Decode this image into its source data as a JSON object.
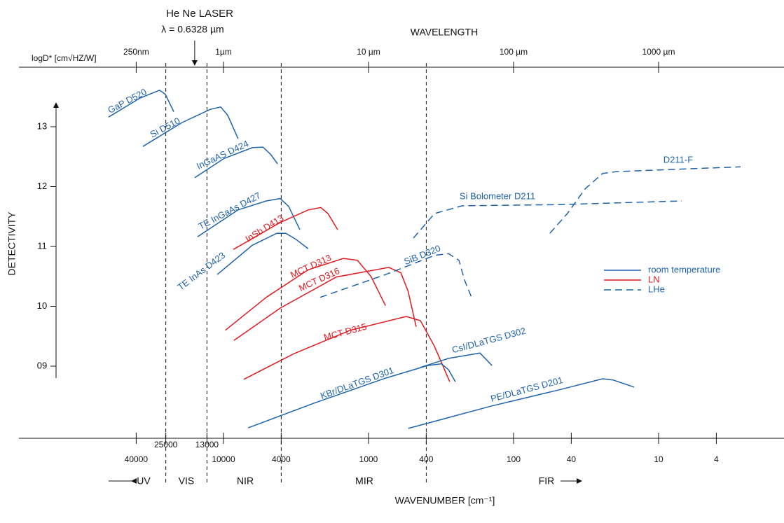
{
  "chart_data": {
    "type": "line",
    "x_scale": "log",
    "top_axis_label": "WAVELENGTH",
    "x2_axis_label": "WAVENUMBER [cm⁻¹]",
    "y_axis_label": "DETECTIVITY",
    "y_unit_label": "logD* [cm√HZ/W]",
    "xlim": [
      0.1,
      5000
    ],
    "xticks": [
      {
        "value": 0.25,
        "label": "250nm"
      },
      {
        "value": 1,
        "label": "1µm"
      },
      {
        "value": 10,
        "label": "10 µm"
      },
      {
        "value": 100,
        "label": "100 µm"
      },
      {
        "value": 1000,
        "label": "1000 µm"
      }
    ],
    "x2lim": [
      100000,
      2
    ],
    "x2ticks": [
      40000,
      25000,
      13000,
      10000,
      4000,
      1000,
      400,
      100,
      40,
      10,
      4
    ],
    "ylim": [
      7.8,
      13.9
    ],
    "yticks": [
      13,
      12,
      11,
      10,
      {
        "value": 9,
        "label": "09"
      }
    ],
    "boundaries": [
      25000,
      13000,
      4000,
      400
    ],
    "regions": [
      "UV",
      "VIS",
      "NIR",
      "MIR",
      "FIR"
    ],
    "laser": {
      "label": "He Ne LASER",
      "wavelength_label": "λ = 0.6328 µm",
      "x": 0.6328
    },
    "legend": [
      {
        "name": "room temperature",
        "color": "#1f63ad",
        "dashed": false
      },
      {
        "name": "LN",
        "color": "#e0191f",
        "dashed": false
      },
      {
        "name": "LHe",
        "color": "#1f63ad",
        "dashed": true
      }
    ],
    "series": [
      {
        "name": "GaP D520",
        "color": "#1f63ad",
        "dashed": false,
        "x": [
          0.161,
          0.266,
          0.363,
          0.397,
          0.454
        ],
        "values": [
          13.16,
          13.48,
          13.61,
          13.54,
          13.25
        ]
      },
      {
        "name": "Si D510",
        "color": "#1f63ad",
        "dashed": false,
        "x": [
          0.278,
          0.519,
          0.81,
          0.957,
          1.07,
          1.26
        ],
        "values": [
          12.67,
          13.07,
          13.29,
          13.33,
          13.19,
          12.8
        ]
      },
      {
        "name": "InGaAS D424",
        "color": "#1f63ad",
        "dashed": false,
        "x": [
          0.634,
          1.01,
          1.58,
          1.87,
          2.11,
          2.36
        ],
        "values": [
          12.15,
          12.47,
          12.65,
          12.66,
          12.54,
          12.38
        ]
      },
      {
        "name": "TE InGaAs D427",
        "color": "#1f63ad",
        "dashed": false,
        "x": [
          0.662,
          1.26,
          1.97,
          2.46,
          2.81,
          3.36
        ],
        "values": [
          11.16,
          11.61,
          11.76,
          11.8,
          11.67,
          11.28
        ]
      },
      {
        "name": "TE InAs D423",
        "color": "#1f63ad",
        "dashed": false,
        "x": [
          0.905,
          1.58,
          2.33,
          2.69,
          3.15,
          3.84
        ],
        "values": [
          10.53,
          11.02,
          11.22,
          11.22,
          11.12,
          10.96
        ]
      },
      {
        "name": "InSb D413",
        "color": "#e0191f",
        "dashed": false,
        "x": [
          1.17,
          2.46,
          3.84,
          4.69,
          5.25,
          6.13
        ],
        "values": [
          10.95,
          11.4,
          11.61,
          11.65,
          11.55,
          11.28
        ]
      },
      {
        "name": "MCT D313",
        "color": "#e0191f",
        "dashed": false,
        "x": [
          1.03,
          1.97,
          3.84,
          6.7,
          8.37,
          10.4,
          13.1
        ],
        "values": [
          9.6,
          10.15,
          10.61,
          10.8,
          10.77,
          10.5,
          10.01
        ]
      },
      {
        "name": "MCT D316",
        "color": "#e0191f",
        "dashed": false,
        "x": [
          1.18,
          2.46,
          6.0,
          13.8,
          16.7,
          18.7,
          21.3
        ],
        "values": [
          9.43,
          9.97,
          10.49,
          10.65,
          10.56,
          10.26,
          9.66
        ]
      },
      {
        "name": "MCT D315",
        "color": "#e0191f",
        "dashed": false,
        "x": [
          1.38,
          3.07,
          7.49,
          18.2,
          22.8,
          28.5,
          36.3
        ],
        "values": [
          8.78,
          9.21,
          9.6,
          9.83,
          9.76,
          9.33,
          8.74
        ]
      },
      {
        "name": "KBr/DLaTGS D301",
        "color": "#1f63ad",
        "dashed": false,
        "x": [
          1.48,
          4.29,
          13.1,
          25.5,
          31.8,
          35.6,
          39.7
        ],
        "values": [
          7.97,
          8.39,
          8.8,
          9.01,
          9.04,
          8.94,
          8.74
        ]
      },
      {
        "name": "CsI/DLaTGS D302",
        "color": "#1f63ad",
        "dashed": false,
        "x": [
          22.8,
          35.6,
          58.6,
          71.0
        ],
        "values": [
          8.98,
          9.13,
          9.22,
          9.01
        ]
      },
      {
        "name": "PE/DLaTGS D201",
        "color": "#1f63ad",
        "dashed": false,
        "x": [
          18.8,
          69.3,
          211,
          411,
          485,
          678
        ],
        "values": [
          7.96,
          8.33,
          8.61,
          8.79,
          8.77,
          8.65
        ]
      },
      {
        "name": "SiB D320",
        "color": "#1f63ad",
        "dashed": true,
        "x": [
          4.64,
          13.1,
          28.5,
          35.6,
          42.0,
          45.9,
          51.3
        ],
        "values": [
          10.15,
          10.53,
          10.85,
          10.88,
          10.77,
          10.44,
          10.15
        ]
      },
      {
        "name": "Si Bolometer D211",
        "color": "#1f63ad",
        "dashed": true,
        "x": [
          20.4,
          28.5,
          44.4,
          211,
          1443
        ],
        "values": [
          11.14,
          11.55,
          11.68,
          11.7,
          11.76
        ]
      },
      {
        "name": "D211-F",
        "color": "#1f63ad",
        "dashed": true,
        "x": [
          178,
          235,
          311,
          411,
          513,
          3673
        ],
        "values": [
          11.22,
          11.55,
          11.96,
          12.22,
          12.25,
          12.33
        ]
      }
    ]
  }
}
